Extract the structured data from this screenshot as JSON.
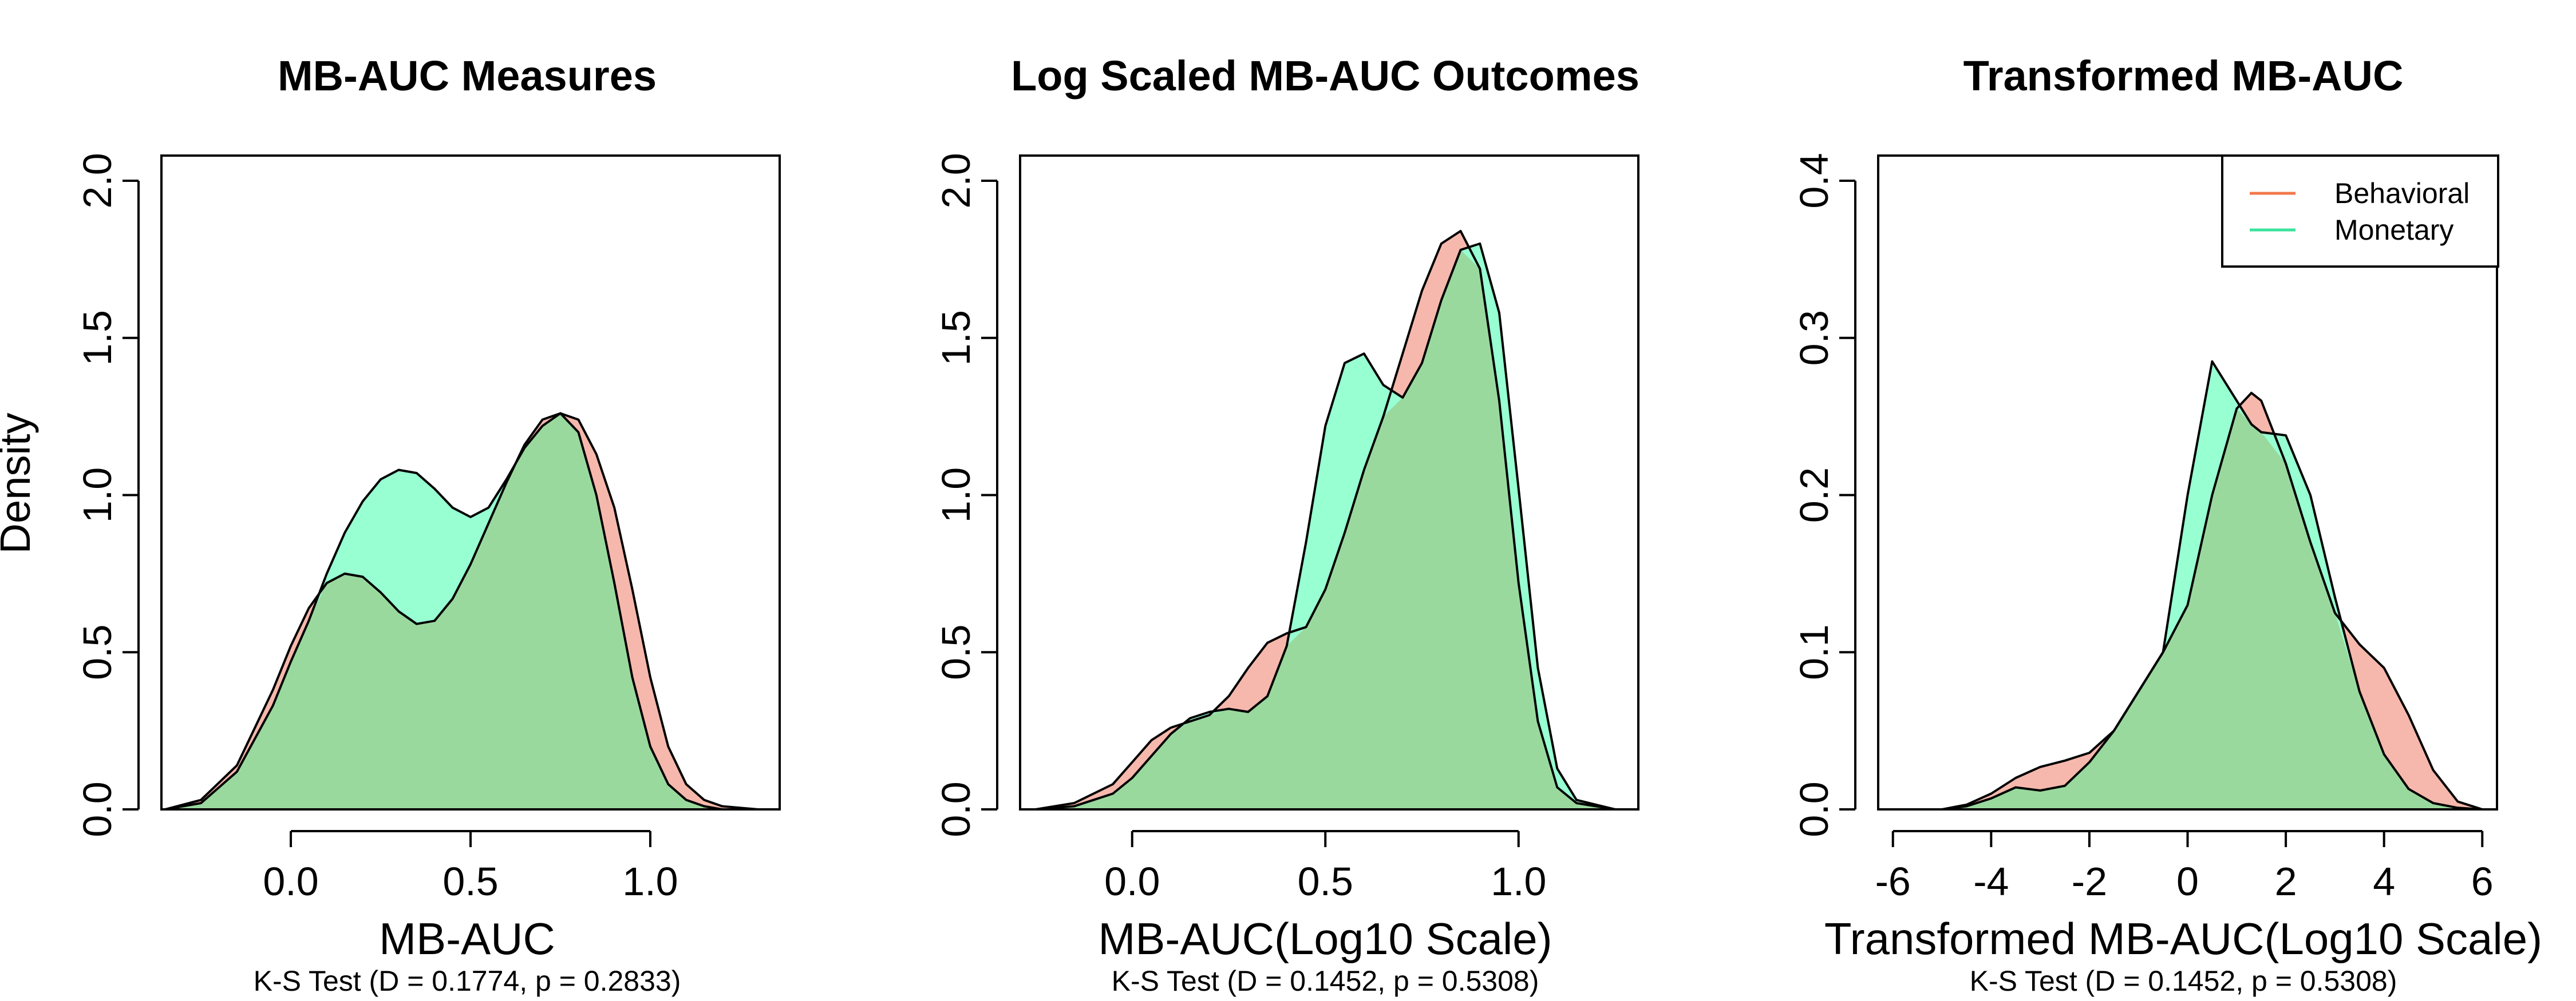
{
  "figure": {
    "ylabel": "Density"
  },
  "colors": {
    "behavioral_fill": "#F6B8AC",
    "monetary_fill": "#98FFD2",
    "overlap_fill": "#9AD99E",
    "behavioral_line": "#F2784B",
    "monetary_line": "#3AE39C",
    "outline": "#000000"
  },
  "legend": {
    "placement": "top-right of third panel",
    "entries": [
      "Behavioral",
      "Monetary"
    ]
  },
  "chart_data": [
    {
      "type": "area",
      "title": "MB-AUC Measures",
      "xlabel": "MB-AUC",
      "subtitle": "K-S Test (D = 0.1774, p = 0.2833)",
      "xlim": [
        -0.36,
        1.36
      ],
      "ylim": [
        0,
        2.08
      ],
      "xticks": [
        0.0,
        0.5,
        1.0
      ],
      "xtick_labels": [
        "0.0",
        "0.5",
        "1.0"
      ],
      "yticks": [
        0.0,
        0.5,
        1.0,
        1.5,
        2.0
      ],
      "ytick_labels": [
        "0.0",
        "0.5",
        "1.0",
        "1.5",
        "2.0"
      ],
      "series": [
        {
          "name": "Behavioral",
          "x": [
            -0.35,
            -0.25,
            -0.15,
            -0.05,
            0.0,
            0.05,
            0.1,
            0.15,
            0.2,
            0.25,
            0.3,
            0.35,
            0.4,
            0.45,
            0.5,
            0.55,
            0.6,
            0.65,
            0.7,
            0.75,
            0.8,
            0.85,
            0.9,
            0.95,
            1.0,
            1.05,
            1.1,
            1.15,
            1.2,
            1.3
          ],
          "y": [
            0.0,
            0.03,
            0.14,
            0.38,
            0.52,
            0.64,
            0.72,
            0.75,
            0.74,
            0.69,
            0.63,
            0.59,
            0.6,
            0.67,
            0.78,
            0.91,
            1.04,
            1.16,
            1.24,
            1.26,
            1.24,
            1.13,
            0.96,
            0.7,
            0.42,
            0.2,
            0.08,
            0.03,
            0.01,
            0.0
          ]
        },
        {
          "name": "Monetary",
          "x": [
            -0.35,
            -0.25,
            -0.15,
            -0.05,
            0.0,
            0.05,
            0.1,
            0.15,
            0.2,
            0.25,
            0.3,
            0.35,
            0.4,
            0.45,
            0.5,
            0.55,
            0.6,
            0.65,
            0.7,
            0.75,
            0.8,
            0.85,
            0.9,
            0.95,
            1.0,
            1.05,
            1.1,
            1.15,
            1.2,
            1.3
          ],
          "y": [
            0.0,
            0.02,
            0.12,
            0.33,
            0.47,
            0.6,
            0.75,
            0.88,
            0.98,
            1.05,
            1.08,
            1.07,
            1.02,
            0.96,
            0.93,
            0.96,
            1.05,
            1.15,
            1.22,
            1.26,
            1.2,
            1.0,
            0.72,
            0.42,
            0.2,
            0.08,
            0.03,
            0.01,
            0.0,
            0.0
          ]
        }
      ]
    },
    {
      "type": "area",
      "title": "Log Scaled MB-AUC Outcomes",
      "xlabel": "MB-AUC(Log10 Scale)",
      "subtitle": "K-S Test (D = 0.1452, p = 0.5308)",
      "xlim": [
        -0.29,
        1.31
      ],
      "ylim": [
        0,
        2.08
      ],
      "xticks": [
        0.0,
        0.5,
        1.0
      ],
      "xtick_labels": [
        "0.0",
        "0.5",
        "1.0"
      ],
      "yticks": [
        0.0,
        0.5,
        1.0,
        1.5,
        2.0
      ],
      "ytick_labels": [
        "0.0",
        "0.5",
        "1.0",
        "1.5",
        "2.0"
      ],
      "series": [
        {
          "name": "Behavioral",
          "x": [
            -0.25,
            -0.15,
            -0.05,
            0.0,
            0.05,
            0.1,
            0.15,
            0.2,
            0.25,
            0.3,
            0.35,
            0.4,
            0.45,
            0.5,
            0.55,
            0.6,
            0.65,
            0.7,
            0.75,
            0.8,
            0.85,
            0.9,
            0.95,
            1.0,
            1.05,
            1.1,
            1.15,
            1.25
          ],
          "y": [
            0.0,
            0.02,
            0.08,
            0.15,
            0.22,
            0.26,
            0.28,
            0.3,
            0.36,
            0.45,
            0.53,
            0.56,
            0.58,
            0.7,
            0.88,
            1.08,
            1.25,
            1.45,
            1.65,
            1.8,
            1.84,
            1.72,
            1.3,
            0.72,
            0.28,
            0.07,
            0.02,
            0.0
          ]
        },
        {
          "name": "Monetary",
          "x": [
            -0.25,
            -0.15,
            -0.05,
            0.0,
            0.05,
            0.1,
            0.15,
            0.2,
            0.25,
            0.3,
            0.35,
            0.4,
            0.45,
            0.5,
            0.55,
            0.6,
            0.65,
            0.7,
            0.75,
            0.8,
            0.85,
            0.9,
            0.95,
            1.0,
            1.05,
            1.1,
            1.15,
            1.25
          ],
          "y": [
            0.0,
            0.01,
            0.05,
            0.1,
            0.17,
            0.24,
            0.29,
            0.31,
            0.32,
            0.31,
            0.36,
            0.52,
            0.85,
            1.22,
            1.42,
            1.45,
            1.35,
            1.31,
            1.42,
            1.62,
            1.78,
            1.8,
            1.58,
            1.02,
            0.45,
            0.13,
            0.03,
            0.0
          ]
        }
      ]
    },
    {
      "type": "area",
      "title": "Transformed MB-AUC",
      "xlabel": "Transformed MB-AUC(Log10 Scale)",
      "subtitle": "K-S Test (D = 0.1452, p = 0.5308)",
      "xlim": [
        -6.3,
        6.3
      ],
      "ylim": [
        0,
        0.416
      ],
      "xticks": [
        -6,
        -4,
        -2,
        0,
        2,
        4,
        6
      ],
      "xtick_labels": [
        "-6",
        "-4",
        "-2",
        "0",
        "2",
        "4",
        "6"
      ],
      "yticks": [
        0.0,
        0.1,
        0.2,
        0.3,
        0.4
      ],
      "ytick_labels": [
        "0.0",
        "0.1",
        "0.2",
        "0.3",
        "0.4"
      ],
      "series": [
        {
          "name": "Behavioral",
          "x": [
            -5,
            -4.5,
            -4,
            -3.5,
            -3,
            -2.5,
            -2,
            -1.5,
            -1,
            -0.5,
            0,
            0.5,
            1,
            1.3,
            1.5,
            2,
            2.5,
            3,
            3.5,
            4,
            4.5,
            5,
            5.5,
            6
          ],
          "y": [
            0.0,
            0.003,
            0.01,
            0.02,
            0.027,
            0.031,
            0.036,
            0.05,
            0.075,
            0.1,
            0.13,
            0.2,
            0.255,
            0.265,
            0.26,
            0.22,
            0.17,
            0.125,
            0.105,
            0.09,
            0.06,
            0.025,
            0.005,
            0.0
          ]
        },
        {
          "name": "Monetary",
          "x": [
            -5,
            -4.5,
            -4,
            -3.5,
            -3,
            -2.5,
            -2,
            -1.5,
            -1,
            -0.5,
            0,
            0.5,
            1,
            1.3,
            1.5,
            2,
            2.5,
            3,
            3.5,
            4,
            4.5,
            5,
            5.5,
            6
          ],
          "y": [
            0.0,
            0.002,
            0.007,
            0.014,
            0.012,
            0.015,
            0.03,
            0.05,
            0.075,
            0.1,
            0.2,
            0.285,
            0.26,
            0.245,
            0.24,
            0.238,
            0.2,
            0.135,
            0.075,
            0.035,
            0.013,
            0.004,
            0.001,
            0.0
          ]
        }
      ]
    }
  ]
}
